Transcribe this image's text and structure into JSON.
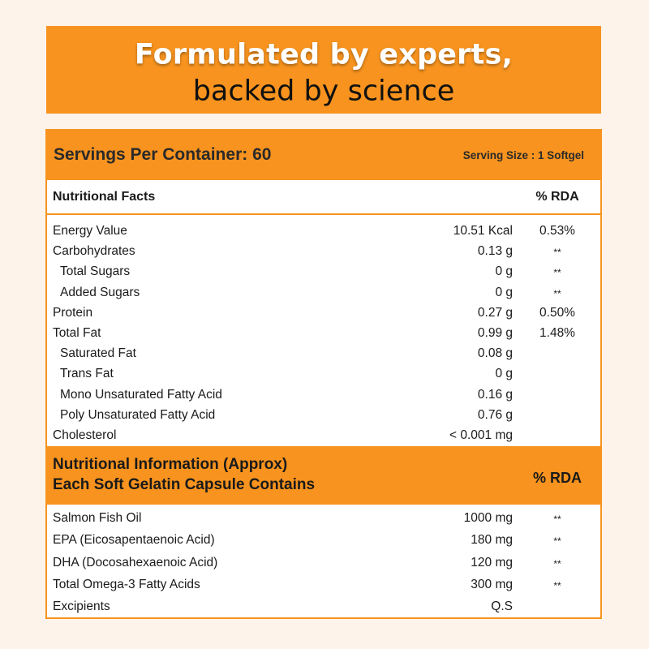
{
  "banner": {
    "line1": "Formulated by experts,",
    "line2": "backed by science"
  },
  "header": {
    "servings": "Servings Per Container: 60",
    "serving_size": "Serving Size : 1 Softgel"
  },
  "facts": {
    "heading": "Nutritional Facts",
    "rda_heading": "% RDA",
    "rows": [
      {
        "name": "Energy Value",
        "value": "10.51 Kcal",
        "rda": "0.53%"
      },
      {
        "name": "Carbohydrates",
        "value": "0.13 g",
        "rda": "**"
      },
      {
        "name": "Total Sugars",
        "value": "0 g",
        "rda": "**"
      },
      {
        "name": "Added Sugars",
        "value": "0 g",
        "rda": "**"
      },
      {
        "name": "Protein",
        "value": "0.27 g",
        "rda": "0.50%"
      },
      {
        "name": "Total Fat",
        "value": "0.99 g",
        "rda": "1.48%"
      },
      {
        "name": "Saturated Fat",
        "value": "0.08 g",
        "rda": ""
      },
      {
        "name": "Trans Fat",
        "value": "0 g",
        "rda": ""
      },
      {
        "name": "Mono Unsaturated Fatty Acid",
        "value": "0.16 g",
        "rda": ""
      },
      {
        "name": "Poly Unsaturated Fatty Acid",
        "value": "0.76 g",
        "rda": ""
      },
      {
        "name": "Cholesterol",
        "value": "< 0.001 mg",
        "rda": ""
      }
    ]
  },
  "info": {
    "heading_line1": "Nutritional Information (Approx)",
    "heading_line2": "Each Soft Gelatin Capsule Contains",
    "rda_heading": "% RDA",
    "rows": [
      {
        "name": "Salmon Fish Oil",
        "value": "1000 mg",
        "rda": "**"
      },
      {
        "name": "EPA (Eicosapentaenoic Acid)",
        "value": "180 mg",
        "rda": "**"
      },
      {
        "name": "DHA (Docosahexaenoic Acid)",
        "value": "120 mg",
        "rda": "**"
      },
      {
        "name": "Total Omega-3 Fatty Acids",
        "value": "300 mg",
        "rda": "**"
      },
      {
        "name": "Excipients",
        "value": "Q.S",
        "rda": ""
      }
    ]
  },
  "colors": {
    "accent": "#f7931e",
    "background": "#fdf3ea"
  }
}
